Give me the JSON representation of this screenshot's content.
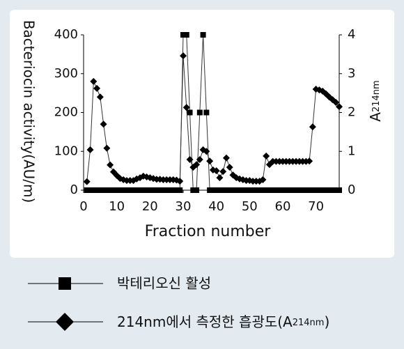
{
  "chart_data": {
    "type": "line",
    "x_label": "Fraction number",
    "y_label": "Bacteriocin activity(AU/m)",
    "y2_label": [
      "A",
      "214nm"
    ],
    "x": [
      1,
      2,
      3,
      4,
      5,
      6,
      7,
      8,
      9,
      10,
      11,
      12,
      13,
      14,
      15,
      16,
      17,
      18,
      19,
      20,
      21,
      22,
      23,
      24,
      25,
      26,
      27,
      28,
      29,
      30,
      31,
      32,
      33,
      34,
      35,
      36,
      37,
      38,
      39,
      40,
      41,
      42,
      43,
      44,
      45,
      46,
      47,
      48,
      49,
      50,
      51,
      52,
      53,
      54,
      55,
      56,
      57,
      58,
      59,
      60,
      61,
      62,
      63,
      64,
      65,
      66,
      67,
      68,
      69,
      70,
      71,
      72,
      73,
      74,
      75,
      76,
      77
    ],
    "series": [
      {
        "name": "박테리오신 활성",
        "color": "#000000",
        "marker": "square",
        "axis": "y",
        "values": [
          0,
          0,
          0,
          0,
          0,
          0,
          0,
          0,
          0,
          0,
          0,
          0,
          0,
          0,
          0,
          0,
          0,
          0,
          0,
          0,
          0,
          0,
          0,
          0,
          0,
          0,
          0,
          0,
          0,
          400,
          400,
          200,
          0,
          0,
          200,
          400,
          200,
          0,
          0,
          0,
          0,
          0,
          0,
          0,
          0,
          0,
          0,
          0,
          0,
          0,
          0,
          0,
          0,
          0,
          0,
          0,
          0,
          0,
          0,
          0,
          0,
          0,
          0,
          0,
          0,
          0,
          0,
          0,
          0,
          0,
          0,
          0,
          0,
          0,
          0,
          0,
          0
        ]
      },
      {
        "name": [
          "214nm에서 측정한 흡광도(A",
          "214nm",
          ")"
        ],
        "color": "#000000",
        "marker": "diamond",
        "axis": "y2",
        "values": [
          0.22,
          1.04,
          2.8,
          2.62,
          2.4,
          1.7,
          1.08,
          0.65,
          0.47,
          0.38,
          0.3,
          0.27,
          0.25,
          0.25,
          0.25,
          0.29,
          0.32,
          0.36,
          0.34,
          0.32,
          0.3,
          0.28,
          0.28,
          0.27,
          0.27,
          0.27,
          0.27,
          0.26,
          0.23,
          3.46,
          2.13,
          0.79,
          0.59,
          0.66,
          0.79,
          1.04,
          1.0,
          0.75,
          0.52,
          0.5,
          0.32,
          0.48,
          0.83,
          0.59,
          0.39,
          0.32,
          0.29,
          0.27,
          0.25,
          0.25,
          0.23,
          0.23,
          0.23,
          0.27,
          0.88,
          0.66,
          0.74,
          0.74,
          0.74,
          0.74,
          0.74,
          0.74,
          0.74,
          0.74,
          0.74,
          0.74,
          0.74,
          0.75,
          1.63,
          2.6,
          2.58,
          2.55,
          2.48,
          2.4,
          2.33,
          2.26,
          2.15
        ]
      }
    ],
    "xlim": [
      0,
      77
    ],
    "xticks": [
      0,
      10,
      20,
      30,
      40,
      50,
      60,
      70
    ],
    "ylim": [
      0,
      400
    ],
    "yticks": [
      0,
      100,
      200,
      300,
      400
    ],
    "y2lim": [
      0,
      4
    ],
    "y2ticks": [
      0,
      1,
      2,
      3,
      4
    ]
  }
}
